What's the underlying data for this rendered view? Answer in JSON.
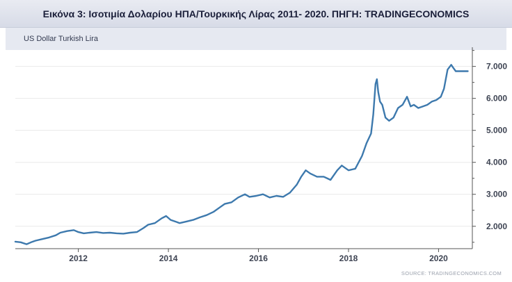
{
  "caption": "Εικόνα 3: Ισοτιμία Δολαρίου ΗΠΑ/Τουρκικής Λίρας 2011- 2020. ΠΗΓΗ: TRADINGECONOMICS",
  "series_label": "US Dollar Turkish Lira",
  "source": "SOURCE: TRADINGECONOMICS.COM",
  "colors": {
    "line": "#3d79ad",
    "axis": "#555555",
    "grid": "#e9e9e9"
  },
  "chart_data": {
    "type": "line",
    "title": "",
    "xlabel": "",
    "ylabel": "",
    "x_ticks": [
      "2012",
      "2014",
      "2016",
      "2018",
      "2020"
    ],
    "y_ticks": [
      "2.000",
      "3.000",
      "4.000",
      "5.000",
      "6.000",
      "7.000"
    ],
    "xlim": [
      2010.6,
      2020.75
    ],
    "ylim": [
      1.3,
      7.6
    ],
    "y_axis_side": "right",
    "grid": "horizontal",
    "series": [
      {
        "name": "US Dollar Turkish Lira",
        "x": [
          2010.6,
          2010.72,
          2010.85,
          2010.95,
          2011.05,
          2011.2,
          2011.35,
          2011.5,
          2011.6,
          2011.75,
          2011.9,
          2012.0,
          2012.12,
          2012.25,
          2012.4,
          2012.55,
          2012.7,
          2012.85,
          2013.0,
          2013.15,
          2013.3,
          2013.45,
          2013.55,
          2013.7,
          2013.85,
          2013.95,
          2014.05,
          2014.15,
          2014.25,
          2014.4,
          2014.55,
          2014.7,
          2014.85,
          2015.0,
          2015.15,
          2015.25,
          2015.4,
          2015.55,
          2015.7,
          2015.8,
          2015.95,
          2016.1,
          2016.25,
          2016.4,
          2016.55,
          2016.7,
          2016.85,
          2016.95,
          2017.05,
          2017.15,
          2017.3,
          2017.45,
          2017.6,
          2017.75,
          2017.85,
          2018.0,
          2018.15,
          2018.3,
          2018.4,
          2018.5,
          2018.55,
          2018.6,
          2018.63,
          2018.66,
          2018.7,
          2018.75,
          2018.82,
          2018.9,
          2019.0,
          2019.1,
          2019.2,
          2019.3,
          2019.38,
          2019.45,
          2019.55,
          2019.65,
          2019.75,
          2019.85,
          2019.95,
          2020.05,
          2020.12,
          2020.2,
          2020.28,
          2020.33,
          2020.38,
          2020.45,
          2020.55,
          2020.65
        ],
        "values": [
          1.52,
          1.5,
          1.44,
          1.5,
          1.55,
          1.6,
          1.65,
          1.72,
          1.8,
          1.85,
          1.88,
          1.82,
          1.78,
          1.8,
          1.82,
          1.79,
          1.8,
          1.78,
          1.77,
          1.8,
          1.82,
          1.95,
          2.05,
          2.1,
          2.25,
          2.32,
          2.2,
          2.15,
          2.1,
          2.15,
          2.2,
          2.28,
          2.35,
          2.45,
          2.6,
          2.7,
          2.75,
          2.9,
          3.0,
          2.92,
          2.95,
          3.0,
          2.9,
          2.95,
          2.92,
          3.05,
          3.3,
          3.55,
          3.75,
          3.65,
          3.55,
          3.55,
          3.45,
          3.75,
          3.9,
          3.75,
          3.8,
          4.2,
          4.6,
          4.9,
          5.5,
          6.45,
          6.6,
          6.2,
          5.9,
          5.8,
          5.4,
          5.3,
          5.4,
          5.7,
          5.8,
          6.05,
          5.75,
          5.8,
          5.7,
          5.75,
          5.8,
          5.9,
          5.95,
          6.05,
          6.3,
          6.9,
          7.05,
          6.95,
          6.85,
          6.85,
          6.85,
          6.85
        ]
      }
    ]
  }
}
